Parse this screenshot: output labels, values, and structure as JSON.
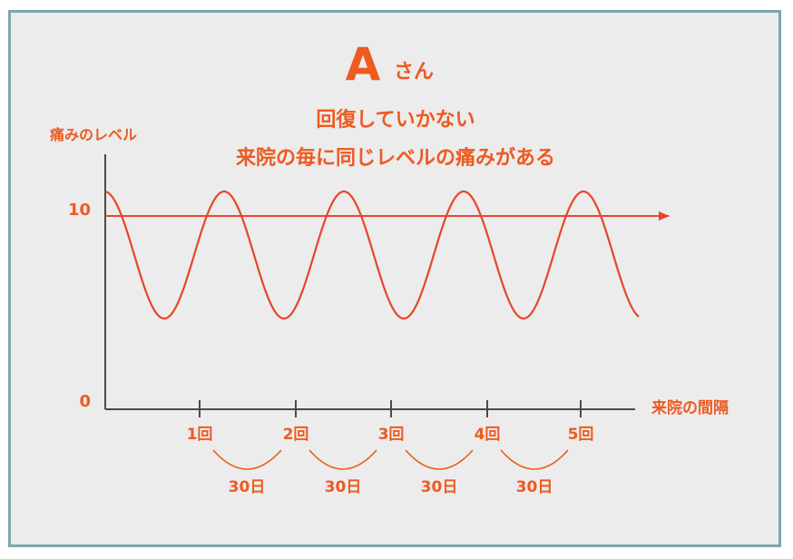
{
  "title": {
    "letter": "A",
    "suffix": "さん"
  },
  "subtitle": {
    "line1": "回復していかない",
    "line2": "来院の毎に同じレベルの痛みがある"
  },
  "axes": {
    "y_label": "痛みのレベル",
    "x_label": "来院の間隔",
    "y_ticks": [
      "10",
      "0"
    ]
  },
  "visits": [
    "1回",
    "2回",
    "3回",
    "4回",
    "5回"
  ],
  "intervals": [
    "30日",
    "30日",
    "30日",
    "30日"
  ],
  "colors": {
    "accent": "#ee5a20",
    "curve": "#e8452c",
    "axis": "#4a4a4a",
    "frame": "#7fa5ad",
    "panel": "#ececec"
  }
}
